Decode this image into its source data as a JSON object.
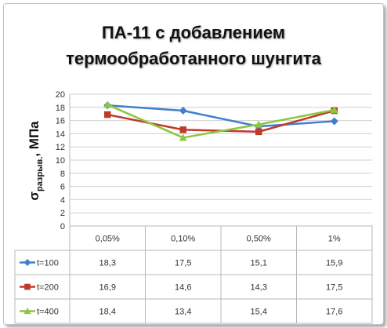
{
  "chart_data": {
    "type": "line",
    "title_line1": "ПА-11 с добавлением",
    "title_line2": "термообработанного шунгита",
    "ylabel_symbol": "σ",
    "ylabel_sub": "разрыв.",
    "ylabel_unit": ", МПа",
    "categories": [
      "0,05%",
      "0,10%",
      "0,50%",
      "1%"
    ],
    "ylim": [
      0,
      20
    ],
    "ytick_step": 2,
    "yticks": [
      "0",
      "2",
      "4",
      "6",
      "8",
      "10",
      "12",
      "14",
      "16",
      "18",
      "20"
    ],
    "grid": true,
    "legend_placement": "data-table",
    "series": [
      {
        "name": "t=100",
        "color": "#3f7fd0",
        "marker": "diamond",
        "values": [
          18.3,
          17.5,
          15.1,
          15.9
        ],
        "labels": [
          "18,3",
          "17,5",
          "15,1",
          "15,9"
        ]
      },
      {
        "name": "t=200",
        "color": "#c0392b",
        "marker": "square",
        "values": [
          16.9,
          14.6,
          14.3,
          17.5
        ],
        "labels": [
          "16,9",
          "14,6",
          "14,3",
          "17,5"
        ]
      },
      {
        "name": "t=400",
        "color": "#8dc63f",
        "marker": "triangle",
        "values": [
          18.4,
          13.4,
          15.4,
          17.6
        ],
        "labels": [
          "18,4",
          "13,4",
          "15,4",
          "17,6"
        ]
      }
    ]
  }
}
